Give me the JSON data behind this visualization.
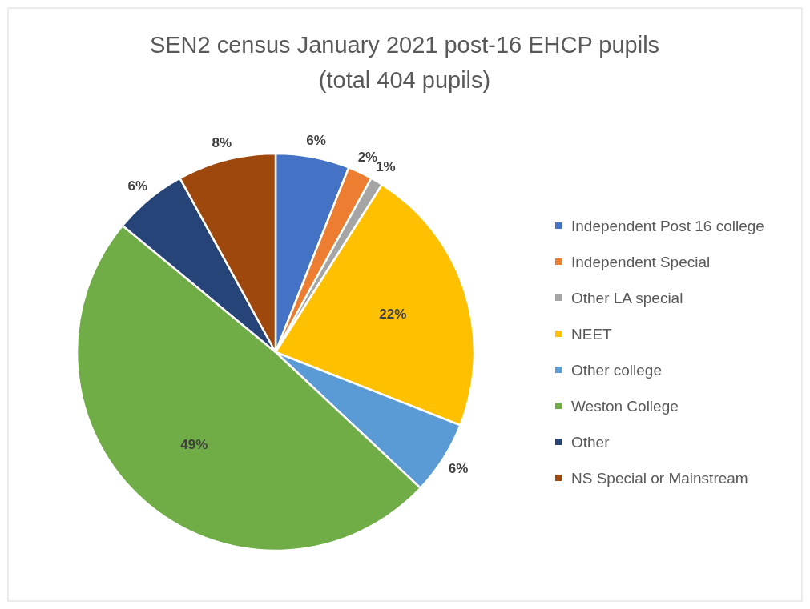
{
  "chart_data": {
    "type": "pie",
    "title": "SEN2 census January 2021 post-16 EHCP pupils",
    "subtitle": "(total 404 pupils)",
    "categories": [
      "Independent Post 16 college",
      "Independent Special",
      "Other LA special",
      "NEET",
      "Other college",
      "Weston College",
      "Other",
      "NS Special or Mainstream"
    ],
    "values": [
      6,
      2,
      1,
      22,
      6,
      49,
      6,
      8
    ],
    "colors": [
      "#4472c4",
      "#ed7d31",
      "#a5a5a5",
      "#ffc000",
      "#5b9bd5",
      "#70ad47",
      "#264478",
      "#9e480e"
    ],
    "value_labels": [
      "6%",
      "2%",
      "1%",
      "22%",
      "6%",
      "49%",
      "6%",
      "8%"
    ],
    "legend": "right"
  }
}
